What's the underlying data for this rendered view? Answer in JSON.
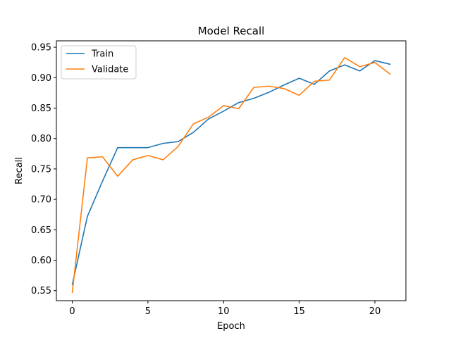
{
  "chart_data": {
    "type": "line",
    "title": "Model Recall",
    "xlabel": "Epoch",
    "ylabel": "Recall",
    "xlim": [
      -1.05,
      22.05
    ],
    "ylim": [
      0.5335,
      0.9605
    ],
    "xticks": [
      0,
      5,
      10,
      15,
      20
    ],
    "yticks": [
      0.55,
      0.6,
      0.65,
      0.7,
      0.75,
      0.8,
      0.85,
      0.9,
      0.95
    ],
    "ytick_labels": [
      "0.55",
      "0.60",
      "0.65",
      "0.70",
      "0.75",
      "0.80",
      "0.85",
      "0.90",
      "0.95"
    ],
    "grid": false,
    "legend": "top-left",
    "x": [
      0,
      1,
      2,
      3,
      4,
      5,
      6,
      7,
      8,
      9,
      10,
      11,
      12,
      13,
      14,
      15,
      16,
      17,
      18,
      19,
      20,
      21
    ],
    "series": [
      {
        "name": "Train",
        "color": "#1f77b4",
        "values": [
          0.56,
          0.672,
          0.73,
          0.785,
          0.785,
          0.785,
          0.792,
          0.795,
          0.81,
          0.832,
          0.845,
          0.859,
          0.866,
          0.876,
          0.888,
          0.899,
          0.889,
          0.911,
          0.921,
          0.911,
          0.928,
          0.922
        ]
      },
      {
        "name": "Validate",
        "color": "#ff7f0e",
        "values": [
          0.547,
          0.768,
          0.77,
          0.738,
          0.765,
          0.772,
          0.765,
          0.787,
          0.824,
          0.835,
          0.854,
          0.849,
          0.884,
          0.886,
          0.882,
          0.871,
          0.894,
          0.896,
          0.933,
          0.918,
          0.925,
          0.906
        ]
      }
    ]
  }
}
